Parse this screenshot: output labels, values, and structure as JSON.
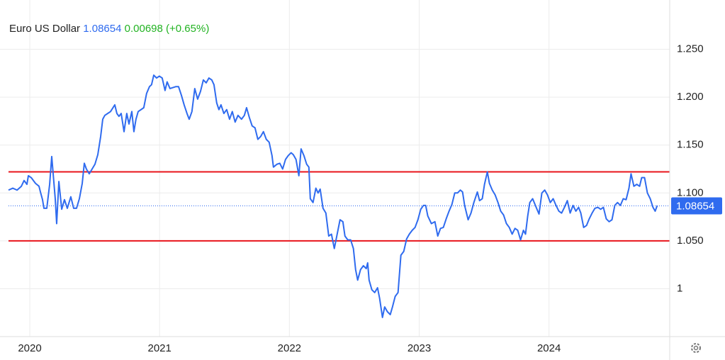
{
  "chart_data": {
    "type": "line",
    "title": "Euro US Dollar",
    "price": 1.08654,
    "change": 0.00698,
    "change_pct": "(+0.65%)",
    "price_color": "#2f6bef",
    "change_color": "#22b322",
    "x": [
      2019.836,
      2019.869,
      2019.902,
      2019.935,
      2019.956,
      2019.978,
      2019.989,
      2020.011,
      2020.044,
      2020.071,
      2020.082,
      2020.098,
      2020.109,
      2020.131,
      2020.153,
      2020.169,
      2020.196,
      2020.207,
      2020.224,
      2020.246,
      2020.267,
      2020.289,
      2020.316,
      2020.338,
      2020.36,
      2020.382,
      2020.404,
      2020.42,
      2020.436,
      2020.458,
      2020.48,
      2020.502,
      2020.524,
      2020.546,
      2020.562,
      2020.578,
      2020.6,
      2020.622,
      2020.655,
      2020.671,
      2020.687,
      2020.704,
      2020.726,
      2020.747,
      2020.764,
      2020.786,
      2020.802,
      2020.818,
      2020.835,
      2020.878,
      2020.9,
      2020.922,
      2020.938,
      2020.955,
      2020.977,
      2020.998,
      2021.02,
      2021.042,
      2021.058,
      2021.08,
      2021.124,
      2021.146,
      2021.168,
      2021.189,
      2021.211,
      2021.228,
      2021.249,
      2021.271,
      2021.293,
      2021.315,
      2021.337,
      2021.359,
      2021.38,
      2021.402,
      2021.419,
      2021.44,
      2021.457,
      2021.473,
      2021.495,
      2021.517,
      2021.539,
      2021.56,
      2021.582,
      2021.604,
      2021.631,
      2021.653,
      2021.67,
      2021.691,
      2021.713,
      2021.735,
      2021.757,
      2021.779,
      2021.8,
      2021.822,
      2021.844,
      2021.866,
      2021.877,
      2021.904,
      2021.926,
      2021.948,
      2021.97,
      2021.991,
      2022.013,
      2022.03,
      2022.051,
      2022.073,
      2022.09,
      2022.112,
      2022.133,
      2022.15,
      2022.161,
      2022.182,
      2022.204,
      2022.221,
      2022.237,
      2022.259,
      2022.281,
      2022.303,
      2022.324,
      2022.346,
      2022.368,
      2022.39,
      2022.412,
      2022.428,
      2022.45,
      2022.472,
      2022.493,
      2022.51,
      2022.526,
      2022.548,
      2022.57,
      2022.592,
      2022.603,
      2022.614,
      2022.635,
      2022.657,
      2022.679,
      2022.695,
      2022.717,
      2022.734,
      2022.755,
      2022.777,
      2022.794,
      2022.815,
      2022.837,
      2022.859,
      2022.881,
      2022.903,
      2022.924,
      2022.946,
      2022.968,
      2022.99,
      2023.012,
      2023.033,
      2023.05,
      2023.066,
      2023.094,
      2023.121,
      2023.143,
      2023.164,
      2023.186,
      2023.208,
      2023.23,
      2023.252,
      2023.274,
      2023.295,
      2023.317,
      2023.334,
      2023.35,
      2023.377,
      2023.399,
      2023.421,
      2023.448,
      2023.465,
      2023.486,
      2023.503,
      2023.525,
      2023.541,
      2023.563,
      2023.585,
      2023.607,
      2023.628,
      2023.65,
      2023.672,
      2023.694,
      2023.716,
      2023.738,
      2023.759,
      2023.781,
      2023.803,
      2023.819,
      2023.836,
      2023.852,
      2023.874,
      2023.901,
      2023.923,
      2023.945,
      2023.967,
      2023.988,
      2024.01,
      2024.032,
      2024.054,
      2024.076,
      2024.097,
      2024.119,
      2024.141,
      2024.163,
      2024.185,
      2024.207,
      2024.228,
      2024.245,
      2024.267,
      2024.289,
      2024.31,
      2024.332,
      2024.354,
      2024.376,
      2024.398,
      2024.419,
      2024.441,
      2024.463,
      2024.485,
      2024.507,
      2024.528,
      2024.55,
      2024.572,
      2024.594,
      2024.616,
      2024.632,
      2024.654,
      2024.676,
      2024.698,
      2024.714,
      2024.736,
      2024.758,
      2024.78,
      2024.801,
      2024.818,
      2024.834
    ],
    "series": [
      {
        "name": "Euro US Dollar",
        "color": "#2f6bef",
        "values": [
          1.103,
          1.105,
          1.103,
          1.107,
          1.113,
          1.109,
          1.118,
          1.116,
          1.11,
          1.107,
          1.101,
          1.093,
          1.084,
          1.084,
          1.109,
          1.138,
          1.094,
          1.068,
          1.112,
          1.083,
          1.093,
          1.084,
          1.096,
          1.084,
          1.084,
          1.094,
          1.11,
          1.131,
          1.125,
          1.12,
          1.125,
          1.13,
          1.14,
          1.159,
          1.177,
          1.181,
          1.183,
          1.185,
          1.192,
          1.183,
          1.18,
          1.183,
          1.164,
          1.183,
          1.172,
          1.185,
          1.164,
          1.177,
          1.185,
          1.189,
          1.204,
          1.211,
          1.213,
          1.223,
          1.22,
          1.222,
          1.22,
          1.207,
          1.216,
          1.209,
          1.211,
          1.211,
          1.202,
          1.192,
          1.183,
          1.177,
          1.185,
          1.209,
          1.198,
          1.206,
          1.218,
          1.215,
          1.22,
          1.218,
          1.213,
          1.194,
          1.187,
          1.192,
          1.183,
          1.187,
          1.177,
          1.185,
          1.174,
          1.181,
          1.177,
          1.181,
          1.189,
          1.179,
          1.17,
          1.168,
          1.156,
          1.159,
          1.164,
          1.156,
          1.153,
          1.139,
          1.127,
          1.13,
          1.131,
          1.125,
          1.135,
          1.139,
          1.142,
          1.14,
          1.135,
          1.118,
          1.146,
          1.139,
          1.13,
          1.127,
          1.094,
          1.09,
          1.105,
          1.1,
          1.104,
          1.084,
          1.079,
          1.055,
          1.057,
          1.042,
          1.057,
          1.072,
          1.07,
          1.055,
          1.051,
          1.051,
          1.042,
          1.02,
          1.009,
          1.02,
          1.024,
          1.021,
          1.027,
          1.009,
          0.999,
          0.996,
          1.001,
          0.99,
          0.97,
          0.981,
          0.976,
          0.973,
          0.981,
          0.992,
          0.996,
          1.035,
          1.039,
          1.052,
          1.057,
          1.061,
          1.064,
          1.072,
          1.083,
          1.087,
          1.087,
          1.076,
          1.068,
          1.07,
          1.055,
          1.063,
          1.064,
          1.073,
          1.081,
          1.088,
          1.1,
          1.1,
          1.103,
          1.101,
          1.087,
          1.072,
          1.079,
          1.09,
          1.101,
          1.092,
          1.094,
          1.109,
          1.122,
          1.11,
          1.103,
          1.098,
          1.09,
          1.081,
          1.077,
          1.068,
          1.064,
          1.057,
          1.063,
          1.061,
          1.051,
          1.061,
          1.057,
          1.076,
          1.09,
          1.094,
          1.085,
          1.078,
          1.1,
          1.103,
          1.098,
          1.09,
          1.094,
          1.087,
          1.081,
          1.079,
          1.085,
          1.092,
          1.079,
          1.087,
          1.081,
          1.085,
          1.079,
          1.064,
          1.066,
          1.073,
          1.079,
          1.084,
          1.085,
          1.083,
          1.085,
          1.073,
          1.07,
          1.072,
          1.087,
          1.09,
          1.087,
          1.094,
          1.093,
          1.105,
          1.12,
          1.107,
          1.109,
          1.107,
          1.116,
          1.116,
          1.1,
          1.094,
          1.085,
          1.081,
          1.087
        ]
      }
    ],
    "reference_lines": [
      {
        "value": 1.122,
        "color": "#e8141b"
      },
      {
        "value": 1.05,
        "color": "#e8141b"
      }
    ],
    "xlim": [
      2019.836,
      2024.93
    ],
    "xticks": [
      2020,
      2021,
      2022,
      2023,
      2024
    ],
    "ylim": [
      0.95,
      1.3
    ],
    "yticks": [
      {
        "value": 1,
        "label": "1"
      },
      {
        "value": 1.05,
        "label": "1.050"
      },
      {
        "value": 1.1,
        "label": "1.100"
      },
      {
        "value": 1.15,
        "label": "1.150"
      },
      {
        "value": 1.2,
        "label": "1.200"
      },
      {
        "value": 1.25,
        "label": "1.250"
      }
    ],
    "grid": true
  }
}
